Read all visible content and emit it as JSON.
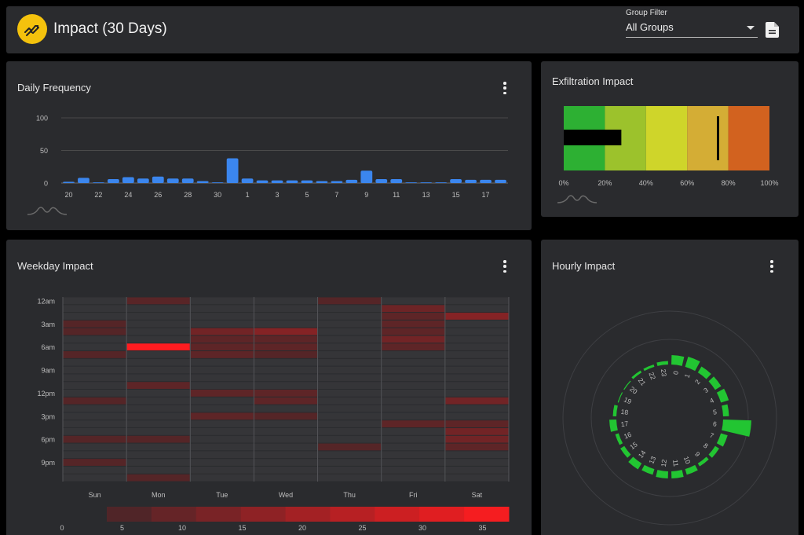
{
  "header": {
    "title": "Impact (30 Days)",
    "logo_icon": "trending-icon",
    "filter_label": "Group Filter",
    "filter_value": "All Groups",
    "report_icon": "document-icon",
    "accent": "#f4c20d"
  },
  "daily": {
    "title": "Daily Frequency",
    "menu_icon": "kebab-menu-icon",
    "chart_data": {
      "type": "bar",
      "categories": [
        "20",
        "21",
        "22",
        "23",
        "24",
        "25",
        "26",
        "27",
        "28",
        "29",
        "30",
        "31",
        "1",
        "2",
        "3",
        "4",
        "5",
        "6",
        "7",
        "8",
        "9",
        "10",
        "11",
        "12",
        "13",
        "14",
        "15",
        "16",
        "17",
        "18"
      ],
      "x_tick_labels": [
        "20",
        "22",
        "24",
        "26",
        "28",
        "30",
        "1",
        "3",
        "5",
        "7",
        "9",
        "11",
        "13",
        "15",
        "17"
      ],
      "values": [
        2,
        8,
        1,
        6,
        9,
        7,
        10,
        7,
        7,
        3,
        1,
        38,
        7,
        4,
        4,
        4,
        4,
        3,
        3,
        5,
        19,
        6,
        6,
        1,
        1,
        1,
        6,
        5,
        5,
        5
      ],
      "ylim": [
        0,
        100
      ],
      "y_ticks": [
        0,
        50,
        100
      ],
      "color": "#3b86ee",
      "grid": true
    }
  },
  "exfil": {
    "title": "Exfiltration Impact",
    "chart_data": {
      "type": "bullet",
      "value": 28,
      "target": 75,
      "range_colors": [
        "#2db033",
        "#9cc22c",
        "#cfd52a",
        "#d4ad35",
        "#d2621f"
      ],
      "ranges": [
        20,
        40,
        60,
        80,
        100
      ],
      "ticks": [
        "0%",
        "20%",
        "40%",
        "60%",
        "80%",
        "100%"
      ],
      "xlim": [
        0,
        100
      ]
    }
  },
  "weekday": {
    "title": "Weekday Impact",
    "menu_icon": "kebab-menu-icon",
    "chart_data": {
      "type": "heatmap",
      "days": [
        "Sun",
        "Mon",
        "Tue",
        "Wed",
        "Thu",
        "Fri",
        "Sat"
      ],
      "hour_labels": [
        "12am",
        "3am",
        "6am",
        "9am",
        "12pm",
        "3pm",
        "6pm",
        "9pm"
      ],
      "scale_ticks": [
        "0",
        "5",
        "10",
        "15",
        "20",
        "25",
        "30",
        "35"
      ],
      "max": 38,
      "values": [
        [
          0,
          4,
          0,
          0,
          3,
          0,
          0
        ],
        [
          0,
          0,
          0,
          0,
          0,
          8,
          0
        ],
        [
          0,
          0,
          0,
          0,
          0,
          5,
          13
        ],
        [
          3,
          0,
          0,
          0,
          0,
          5,
          0
        ],
        [
          3,
          0,
          9,
          13,
          0,
          5,
          0
        ],
        [
          0,
          0,
          5,
          5,
          0,
          9,
          0
        ],
        [
          0,
          38,
          5,
          5,
          0,
          5,
          0
        ],
        [
          3,
          0,
          5,
          3,
          0,
          0,
          0
        ],
        [
          0,
          0,
          0,
          0,
          0,
          0,
          0
        ],
        [
          0,
          0,
          0,
          0,
          0,
          0,
          0
        ],
        [
          0,
          0,
          0,
          0,
          0,
          0,
          0
        ],
        [
          0,
          5,
          0,
          0,
          0,
          0,
          0
        ],
        [
          0,
          0,
          5,
          5,
          0,
          0,
          0
        ],
        [
          3,
          0,
          0,
          5,
          0,
          0,
          9
        ],
        [
          0,
          0,
          0,
          0,
          0,
          0,
          0
        ],
        [
          0,
          0,
          5,
          3,
          0,
          0,
          0
        ],
        [
          0,
          0,
          0,
          0,
          0,
          5,
          5
        ],
        [
          0,
          0,
          0,
          0,
          0,
          0,
          9
        ],
        [
          3,
          3,
          0,
          0,
          0,
          0,
          9
        ],
        [
          0,
          0,
          0,
          0,
          3,
          0,
          5
        ],
        [
          0,
          0,
          0,
          0,
          0,
          0,
          0
        ],
        [
          3,
          0,
          0,
          0,
          0,
          0,
          0
        ],
        [
          0,
          0,
          0,
          0,
          0,
          0,
          0
        ],
        [
          0,
          3,
          0,
          0,
          0,
          0,
          0
        ]
      ]
    }
  },
  "hourly": {
    "title": "Hourly Impact",
    "menu_icon": "kebab-menu-icon",
    "chart_data": {
      "type": "radial-bar",
      "hours": [
        "0",
        "1",
        "2",
        "3",
        "4",
        "5",
        "6",
        "7",
        "8",
        "9",
        "10",
        "11",
        "12",
        "13",
        "14",
        "15",
        "16",
        "17",
        "18",
        "19",
        "20",
        "21",
        "22",
        "23"
      ],
      "values": [
        8,
        9,
        6,
        6,
        7,
        5,
        24,
        6,
        4,
        3,
        5,
        6,
        6,
        5,
        6,
        4,
        3,
        6,
        3,
        0,
        0,
        1,
        1,
        3
      ],
      "color": "#22c532"
    }
  }
}
